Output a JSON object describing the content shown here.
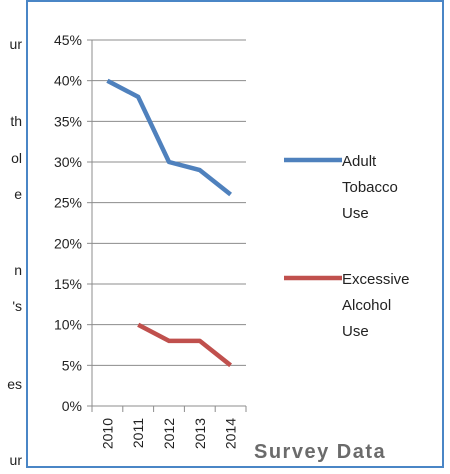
{
  "document_fragments": [
    "ur",
    "th",
    "ol",
    "e",
    "n",
    "'s",
    "es",
    "ur"
  ],
  "chart_data": {
    "type": "line",
    "title": "Survey Data",
    "xlabel": "",
    "ylabel": "",
    "categories": [
      "2010",
      "2011",
      "2012",
      "2013",
      "2014"
    ],
    "ylim": [
      0,
      45
    ],
    "yticks": [
      "0%",
      "5%",
      "10%",
      "15%",
      "20%",
      "25%",
      "30%",
      "35%",
      "40%",
      "45%"
    ],
    "grid": true,
    "legend_position": "right",
    "series": [
      {
        "name": "Adult Tobacco Use",
        "legend_lines": [
          "Adult",
          "Tobacco",
          "Use"
        ],
        "color": "#4f81bd",
        "values": [
          40,
          38,
          30,
          29,
          26
        ]
      },
      {
        "name": "Excessive Alcohol Use",
        "legend_lines": [
          "Excessive",
          "Alcohol",
          "Use"
        ],
        "color": "#c0504d",
        "values": [
          null,
          10,
          8,
          8,
          5
        ]
      }
    ]
  }
}
